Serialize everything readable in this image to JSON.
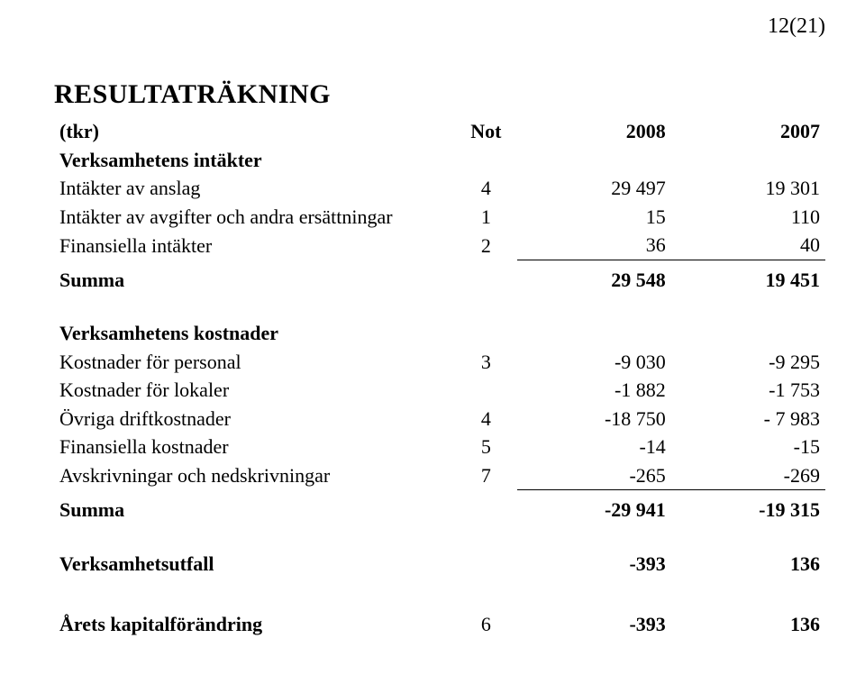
{
  "pageNumber": "12(21)",
  "title": "RESULTATRÄKNING",
  "header": {
    "col0": "(tkr)",
    "col1": "Not",
    "col2": "2008",
    "col3": "2007"
  },
  "intakter": {
    "heading": "Verksamhetens intäkter",
    "rows": [
      {
        "label": "Intäkter av anslag",
        "not": "4",
        "v1": "29 497",
        "v2": "19 301"
      },
      {
        "label": "Intäkter av avgifter och andra ersättningar",
        "not": "1",
        "v1": "15",
        "v2": "110"
      },
      {
        "label": "Finansiella intäkter",
        "not": "2",
        "v1": "36",
        "v2": "40"
      }
    ],
    "sum": {
      "label": "Summa",
      "v1": "29 548",
      "v2": "19 451"
    }
  },
  "kostnader": {
    "heading": "Verksamhetens kostnader",
    "rows": [
      {
        "label": "Kostnader för personal",
        "not": "3",
        "v1": "-9 030",
        "v2": "-9 295"
      },
      {
        "label": "Kostnader för lokaler",
        "not": "",
        "v1": "-1 882",
        "v2": "-1 753"
      },
      {
        "label": "Övriga driftkostnader",
        "not": "4",
        "v1": "-18 750",
        "v2": "- 7 983"
      },
      {
        "label": "Finansiella kostnader",
        "not": "5",
        "v1": "-14",
        "v2": "-15"
      },
      {
        "label": "Avskrivningar och nedskrivningar",
        "not": "7",
        "v1": "-265",
        "v2": "-269"
      }
    ],
    "sum": {
      "label": "Summa",
      "v1": "-29 941",
      "v2": "-19 315"
    }
  },
  "utfall": {
    "label": "Verksamhetsutfall",
    "v1": "-393",
    "v2": "136"
  },
  "kapital": {
    "label": "Årets kapitalförändring",
    "not": "6",
    "v1": "-393",
    "v2": "136"
  }
}
